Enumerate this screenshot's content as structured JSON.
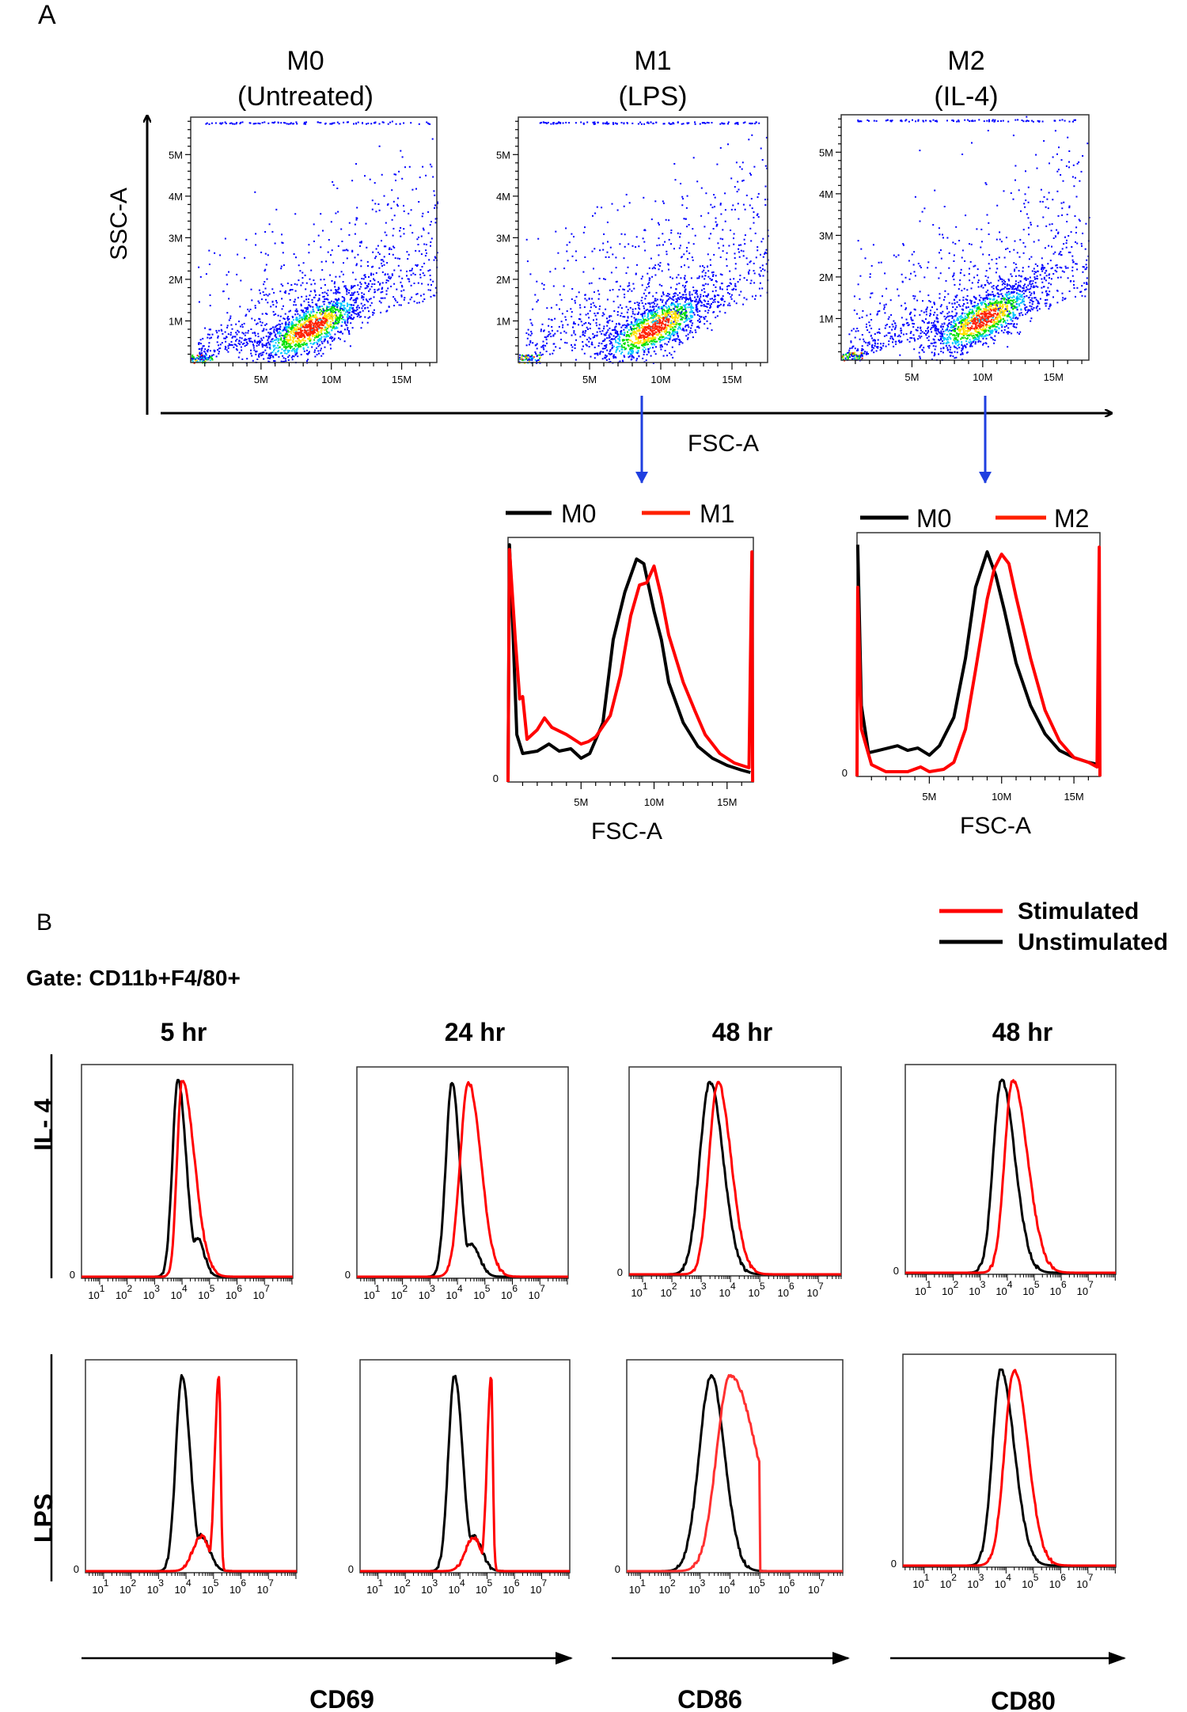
{
  "panel_labels": {
    "a": "A",
    "b": "B"
  },
  "panel_a": {
    "y_axis_label": "SSC-A",
    "x_axis_label": "FSC-A",
    "arrow_color": "#1f3fe0"
  },
  "panel_b": {
    "gate_label": "Gate: CD11b+F4/80+",
    "legend": [
      {
        "label": "Stimulated",
        "color": "#ff0000"
      },
      {
        "label": "Unstimulated",
        "color": "#000000"
      }
    ],
    "column_titles": [
      "5 hr",
      "24 hr",
      "48 hr",
      "48 hr"
    ],
    "row_labels": [
      "IL- 4",
      "LPS"
    ],
    "marker_labels": [
      "CD69",
      "CD86",
      "CD80"
    ]
  },
  "chart_data": [
    {
      "type": "scatter",
      "title": "M0",
      "subtitle": "(Untreated)",
      "xlabel": "FSC-A",
      "ylabel": "SSC-A",
      "xlim": [
        0,
        17.5
      ],
      "ylim": [
        0,
        5.9
      ],
      "x_unit": "M",
      "y_unit": "M",
      "x_ticks": [
        "5M",
        "10M",
        "15M"
      ],
      "y_ticks": [
        "1M",
        "2M",
        "3M",
        "4M",
        "5M"
      ],
      "density_center": [
        8.5,
        0.85
      ],
      "color_scale": [
        "#0000ff",
        "#00c8ff",
        "#00e000",
        "#ffe000",
        "#ff2000"
      ]
    },
    {
      "type": "scatter",
      "title": "M1",
      "subtitle": "(LPS)",
      "xlabel": "FSC-A",
      "ylabel": "SSC-A",
      "xlim": [
        0,
        17.5
      ],
      "ylim": [
        0,
        5.9
      ],
      "x_unit": "M",
      "y_unit": "M",
      "x_ticks": [
        "5M",
        "10M",
        "15M"
      ],
      "y_ticks": [
        "1M",
        "2M",
        "3M",
        "4M",
        "5M"
      ],
      "density_center": [
        9.5,
        0.85
      ],
      "color_scale": [
        "#0000ff",
        "#00c8ff",
        "#00e000",
        "#ffe000",
        "#ff2000"
      ]
    },
    {
      "type": "scatter",
      "title": "M2",
      "subtitle": "(IL-4)",
      "xlabel": "FSC-A",
      "ylabel": "SSC-A",
      "xlim": [
        0,
        17.5
      ],
      "ylim": [
        0,
        5.9
      ],
      "x_unit": "M",
      "y_unit": "M",
      "x_ticks": [
        "5M",
        "10M",
        "15M"
      ],
      "y_ticks": [
        "1M",
        "2M",
        "3M",
        "4M",
        "5M"
      ],
      "density_center": [
        10.0,
        1.0
      ],
      "color_scale": [
        "#0000ff",
        "#00c8ff",
        "#00e000",
        "#ffe000",
        "#ff2000"
      ]
    },
    {
      "type": "line",
      "xlabel": "FSC-A",
      "xlim": [
        0,
        16.8
      ],
      "x_ticks": [
        "5M",
        "10M",
        "15M"
      ],
      "y_tick": "0",
      "series": [
        {
          "name": "M0",
          "color": "#000000",
          "x": [
            0,
            0.1,
            0.3,
            0.6,
            1,
            2,
            2.8,
            3.5,
            4.3,
            5,
            5.6,
            6.5,
            7.2,
            8,
            8.8,
            9.3,
            10,
            10.5,
            11,
            12,
            13,
            14,
            15,
            16,
            16.6
          ],
          "y": [
            0,
            100,
            70,
            20,
            12,
            13,
            16,
            13,
            14,
            10,
            12,
            25,
            60,
            80,
            94,
            92,
            72,
            60,
            42,
            25,
            15,
            10,
            7,
            5,
            4
          ]
        },
        {
          "name": "M1",
          "color": "#ff0000",
          "x": [
            0,
            0.1,
            0.5,
            0.8,
            1,
            1.3,
            2,
            2.5,
            3,
            4,
            5,
            5.5,
            6,
            7,
            7.7,
            8.4,
            9,
            9.5,
            10,
            10.5,
            11,
            12,
            12.8,
            13.5,
            14.5,
            15.5,
            16.5,
            16.7,
            16.75
          ],
          "y": [
            0,
            98,
            60,
            35,
            36,
            18,
            22,
            27,
            23,
            20,
            16,
            17,
            19,
            28,
            45,
            70,
            83,
            84,
            91,
            78,
            62,
            42,
            30,
            20,
            12,
            8,
            6,
            97,
            0
          ]
        }
      ]
    },
    {
      "type": "line",
      "xlabel": "FSC-A",
      "xlim": [
        0,
        16.8
      ],
      "x_ticks": [
        "5M",
        "10M",
        "15M"
      ],
      "y_tick": "0",
      "series": [
        {
          "name": "M0",
          "color": "#000000",
          "x": [
            0.05,
            0.3,
            0.8,
            1.5,
            2.8,
            3.5,
            4.2,
            5,
            5.7,
            6.7,
            7.5,
            8.2,
            9,
            9.6,
            10.2,
            11,
            12,
            13,
            14,
            15,
            16,
            16.7
          ],
          "y": [
            98,
            30,
            10,
            11,
            13,
            11,
            12,
            9,
            13,
            25,
            50,
            80,
            95,
            85,
            70,
            48,
            30,
            18,
            11,
            8,
            6,
            5
          ]
        },
        {
          "name": "M2",
          "color": "#ff0000",
          "x": [
            0,
            0.05,
            0.3,
            1,
            2,
            3.5,
            4.4,
            5,
            6,
            6.7,
            7.5,
            8.2,
            9,
            9.5,
            10,
            10.5,
            11,
            12,
            13,
            14,
            15,
            16,
            16.6,
            16.75,
            16.8
          ],
          "y": [
            0,
            80,
            20,
            5,
            2,
            2,
            4,
            2,
            3,
            6,
            20,
            45,
            75,
            88,
            94,
            90,
            76,
            50,
            28,
            15,
            8,
            6,
            4,
            97,
            0
          ]
        }
      ]
    },
    {
      "type": "line",
      "row": "IL- 4",
      "column": "5 hr",
      "marker": "CD69",
      "x_scale": "log",
      "xlim_log10": [
        0.34,
        8.03
      ],
      "tick_base": "10",
      "tick_exponents": [
        1,
        2,
        3,
        4,
        5,
        6,
        7
      ],
      "y_tick": "0",
      "series": [
        {
          "name": "Unstimulated",
          "color": "#000000",
          "peak_log10": 3.85,
          "spread_left": 0.2,
          "spread_right": 0.3,
          "shoulders": [
            {
              "at_log10": 4.55,
              "rel_height": 0.2,
              "spread": 0.25
            }
          ]
        },
        {
          "name": "Stimulated",
          "color": "#ff0000",
          "peak_log10": 4.0,
          "spread_left": 0.18,
          "spread_right": 0.45,
          "shoulders": []
        }
      ]
    },
    {
      "type": "line",
      "row": "IL- 4",
      "column": "24 hr",
      "marker": "CD69",
      "x_scale": "log",
      "xlim_log10": [
        0.34,
        8.03
      ],
      "tick_base": "10",
      "tick_exponents": [
        1,
        2,
        3,
        4,
        5,
        6,
        7
      ],
      "y_tick": "0",
      "series": [
        {
          "name": "Unstimulated",
          "color": "#000000",
          "peak_log10": 3.8,
          "spread_left": 0.22,
          "spread_right": 0.28,
          "shoulders": [
            {
              "at_log10": 4.5,
              "rel_height": 0.17,
              "spread": 0.3
            }
          ]
        },
        {
          "name": "Stimulated",
          "color": "#ff0000",
          "peak_log10": 4.4,
          "spread_left": 0.3,
          "spread_right": 0.45,
          "shoulders": []
        }
      ]
    },
    {
      "type": "line",
      "row": "IL- 4",
      "column": "48 hr",
      "marker": "CD86",
      "x_scale": "log",
      "xlim_log10": [
        0.54,
        7.78
      ],
      "tick_base": "10",
      "tick_exponents": [
        1,
        2,
        3,
        4,
        5,
        6,
        7
      ],
      "y_tick": "0",
      "series": [
        {
          "name": "Unstimulated",
          "color": "#000000",
          "peak_log10": 3.3,
          "spread_left": 0.35,
          "spread_right": 0.45,
          "shoulders": []
        },
        {
          "name": "Stimulated",
          "color": "#ff0000",
          "peak_log10": 3.57,
          "spread_left": 0.3,
          "spread_right": 0.45,
          "shoulders": []
        }
      ]
    },
    {
      "type": "line",
      "row": "IL- 4",
      "column": "48 hr",
      "marker": "CD80",
      "x_scale": "log",
      "xlim_log10": [
        0.22,
        8.02
      ],
      "tick_base": "10",
      "tick_exponents": [
        1,
        2,
        3,
        4,
        5,
        6,
        7
      ],
      "y_tick": "0",
      "series": [
        {
          "name": "Unstimulated",
          "color": "#000000",
          "peak_log10": 3.78,
          "spread_left": 0.3,
          "spread_right": 0.5,
          "shoulders": []
        },
        {
          "name": "Stimulated",
          "color": "#ff0000",
          "peak_log10": 4.2,
          "spread_left": 0.3,
          "spread_right": 0.55,
          "shoulders": []
        }
      ]
    },
    {
      "type": "line",
      "row": "LPS",
      "column": "5 hr",
      "marker": "CD69",
      "x_scale": "log",
      "xlim_log10": [
        0.34,
        8.03
      ],
      "tick_base": "10",
      "tick_exponents": [
        1,
        2,
        3,
        4,
        5,
        6,
        7
      ],
      "y_tick": "0",
      "series": [
        {
          "name": "Unstimulated",
          "color": "#000000",
          "peak_log10": 3.85,
          "spread_left": 0.22,
          "spread_right": 0.3,
          "shoulders": [
            {
              "at_log10": 4.55,
              "rel_height": 0.18,
              "spread": 0.3
            }
          ]
        },
        {
          "name": "Stimulated",
          "color": "#ff0000",
          "peak_log10": 5.2,
          "spread_left": 0.15,
          "spread_right": 0.06,
          "shoulders": [
            {
              "at_log10": 4.55,
              "rel_height": 0.18,
              "spread": 0.3
            }
          ]
        }
      ]
    },
    {
      "type": "line",
      "row": "LPS",
      "column": "24 hr",
      "marker": "CD69",
      "x_scale": "log",
      "xlim_log10": [
        0.34,
        8.03
      ],
      "tick_base": "10",
      "tick_exponents": [
        1,
        2,
        3,
        4,
        5,
        6,
        7
      ],
      "y_tick": "0",
      "series": [
        {
          "name": "Unstimulated",
          "color": "#000000",
          "peak_log10": 3.8,
          "spread_left": 0.22,
          "spread_right": 0.3,
          "shoulders": [
            {
              "at_log10": 4.5,
              "rel_height": 0.18,
              "spread": 0.3
            }
          ]
        },
        {
          "name": "Stimulated",
          "color": "#ff0000",
          "peak_log10": 5.15,
          "spread_left": 0.15,
          "spread_right": 0.06,
          "shoulders": [
            {
              "at_log10": 4.5,
              "rel_height": 0.17,
              "spread": 0.3
            }
          ]
        }
      ]
    },
    {
      "type": "line",
      "row": "LPS",
      "column": "48 hr",
      "marker": "CD86",
      "x_scale": "log",
      "xlim_log10": [
        0.54,
        7.78
      ],
      "tick_base": "10",
      "tick_exponents": [
        1,
        2,
        3,
        4,
        5,
        6,
        7
      ],
      "y_tick": "0",
      "series": [
        {
          "name": "Unstimulated",
          "color": "#000000",
          "peak_log10": 3.37,
          "spread_left": 0.4,
          "spread_right": 0.45,
          "shoulders": []
        },
        {
          "name": "Stimulated",
          "color": "#ff3030",
          "peak_log10": 4.0,
          "spread_left": 0.45,
          "spread_right": 0.9,
          "cutoff_log10": 5.0,
          "shoulders": []
        }
      ]
    },
    {
      "type": "line",
      "row": "LPS",
      "column": "48 hr",
      "marker": "CD80",
      "x_scale": "log",
      "xlim_log10": [
        0.22,
        8.02
      ],
      "tick_base": "10",
      "tick_exponents": [
        1,
        2,
        3,
        4,
        5,
        6,
        7
      ],
      "y_tick": "0",
      "series": [
        {
          "name": "Unstimulated",
          "color": "#000000",
          "peak_log10": 3.8,
          "spread_left": 0.3,
          "spread_right": 0.5,
          "shoulders": []
        },
        {
          "name": "Stimulated",
          "color": "#ff0000",
          "peak_log10": 4.3,
          "spread_left": 0.35,
          "spread_right": 0.5,
          "shoulders": []
        }
      ]
    }
  ]
}
